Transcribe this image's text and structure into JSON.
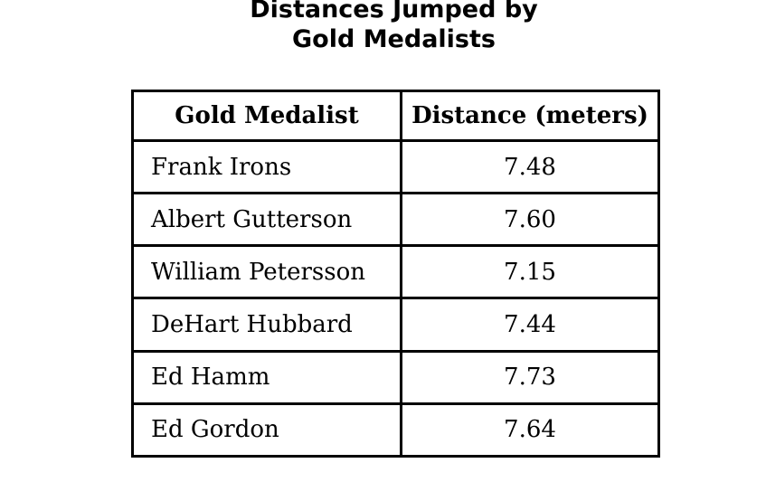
{
  "title": {
    "line1": "Distances Jumped by",
    "line2": "Gold Medalists"
  },
  "table": {
    "headers": [
      "Gold Medalist",
      "Distance (meters)"
    ],
    "rows": [
      {
        "name": "Frank Irons",
        "distance": "7.48"
      },
      {
        "name": "Albert Gutterson",
        "distance": "7.60"
      },
      {
        "name": "William Petersson",
        "distance": "7.15"
      },
      {
        "name": "DeHart Hubbard",
        "distance": "7.44"
      },
      {
        "name": "Ed Hamm",
        "distance": "7.73"
      },
      {
        "name": "Ed Gordon",
        "distance": "7.64"
      }
    ]
  }
}
